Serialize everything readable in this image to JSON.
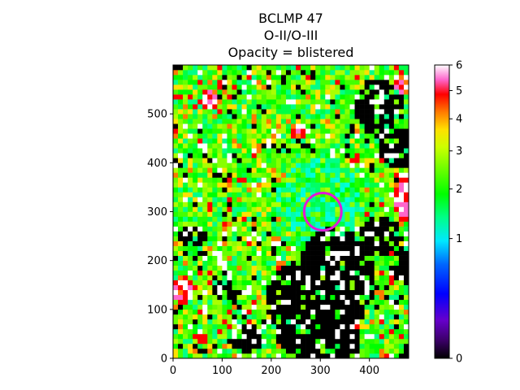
{
  "title": {
    "line1": "BCLMP 47",
    "line2": "O-II/O-III",
    "line3": "Opacity = blistered"
  },
  "chart_data": {
    "type": "heatmap",
    "colormap": "gist_ncar",
    "xlim": [
      0,
      480
    ],
    "ylim": [
      0,
      600
    ],
    "x_ticks": [
      0,
      100,
      200,
      300,
      400
    ],
    "y_ticks": [
      0,
      100,
      200,
      300,
      400,
      500
    ],
    "colorbar": {
      "range": [
        0,
        6
      ],
      "scale": "power",
      "ticks": [
        0,
        1,
        2,
        3,
        4,
        5,
        6
      ]
    },
    "marker": {
      "shape": "circle",
      "center": [
        305,
        300
      ],
      "radius": 38,
      "color": "#e01ad6"
    }
  }
}
